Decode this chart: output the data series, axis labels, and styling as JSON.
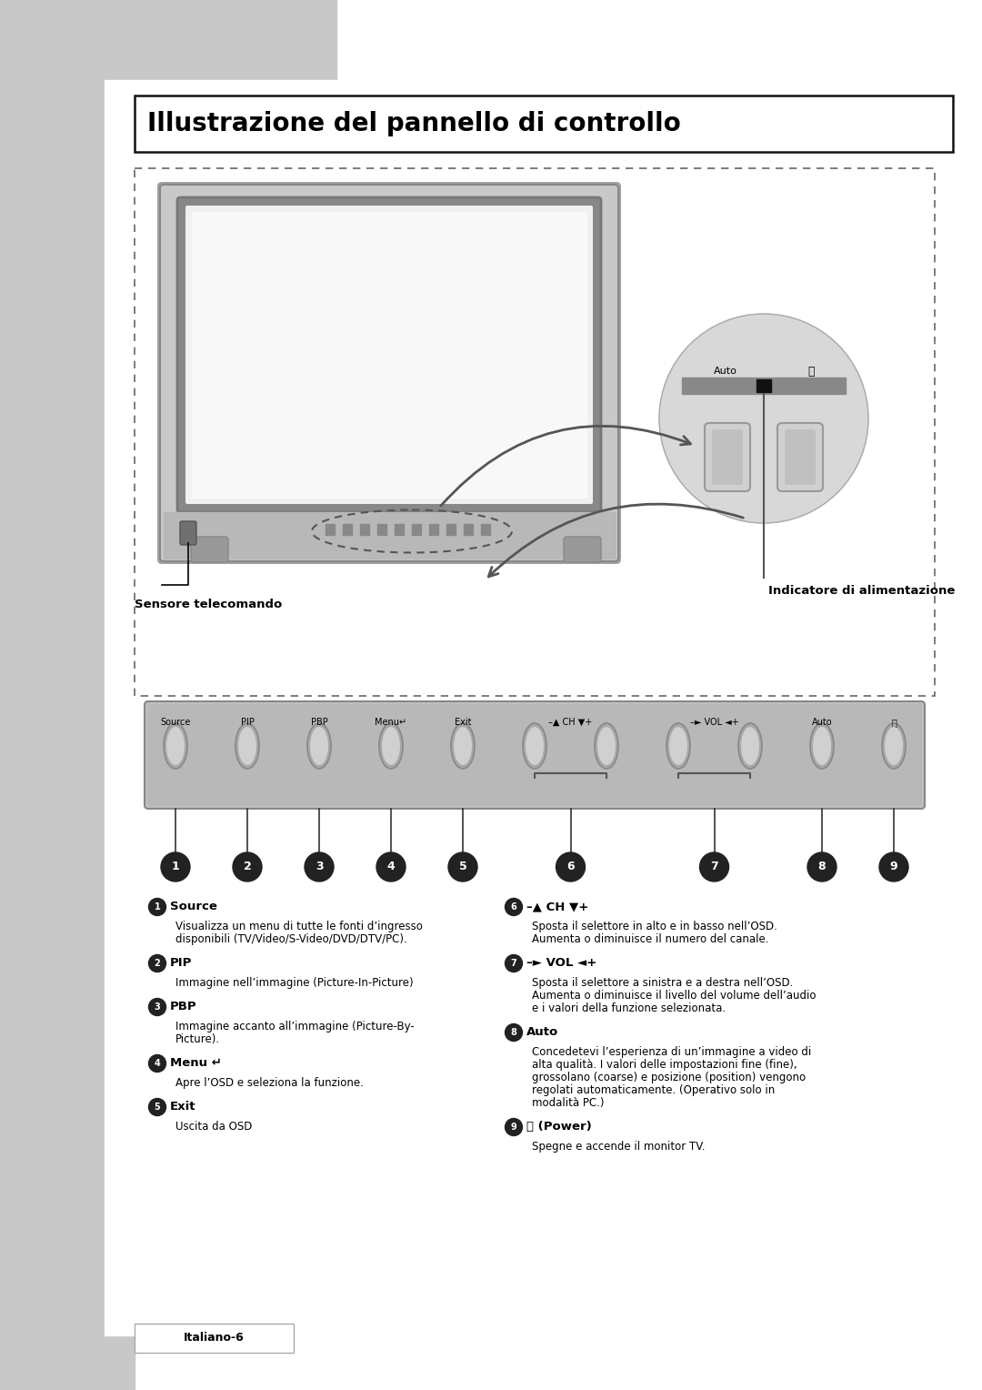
{
  "title": "Illustrazione del pannello di controllo",
  "bg_color": "#ffffff",
  "sidebar_color": "#c8c8c8",
  "page_label": "Italiano-6",
  "items_left": [
    {
      "num": "1",
      "heading": "Source",
      "body": "Visualizza un menu di tutte le fonti d’ingresso\ndisponibili (TV/Video/S-Video/DVD/DTV/PC)."
    },
    {
      "num": "2",
      "heading": "PIP",
      "body": "Immagine nell’immagine (Picture-In-Picture)"
    },
    {
      "num": "3",
      "heading": "PBP",
      "body": "Immagine accanto all’immagine (Picture-By-\nPicture)."
    },
    {
      "num": "4",
      "heading": "Menu ↵",
      "body": "Apre l’OSD e seleziona la funzione."
    },
    {
      "num": "5",
      "heading": "Exit",
      "body": "Uscita da OSD"
    }
  ],
  "items_right": [
    {
      "num": "6",
      "heading": "–▲ CH ▼+",
      "body": "Sposta il selettore in alto e in basso nell’OSD.\nAumenta o diminuisce il numero del canale."
    },
    {
      "num": "7",
      "heading": "–► VOL ◄+",
      "body": "Sposta il selettore a sinistra e a destra nell’OSD.\nAumenta o diminuisce il livello del volume dell’audio\ne i valori della funzione selezionata."
    },
    {
      "num": "8",
      "heading": "Auto",
      "body": "Concedetevi l’esperienza di un’immagine a video di\nalta qualità. I valori delle impostazioni fine (fine),\ngrossolano (coarse) e posizione (position) vengono\nregolati automaticamente. (Operativo solo in\nmodalità PC.)"
    },
    {
      "num": "9",
      "heading": "⏻ (Power)",
      "body": "Spegne e accende il monitor TV."
    }
  ],
  "btn_labels_row": [
    "Source",
    "PIP",
    "PBP",
    "Menu↵",
    "Exit",
    "–▲ CH ▼+",
    "–► VOL ◄+",
    "Auto",
    "⏻"
  ],
  "sensor_label": "Sensore telecomando",
  "indicator_label": "Indicatore di alimentazione"
}
